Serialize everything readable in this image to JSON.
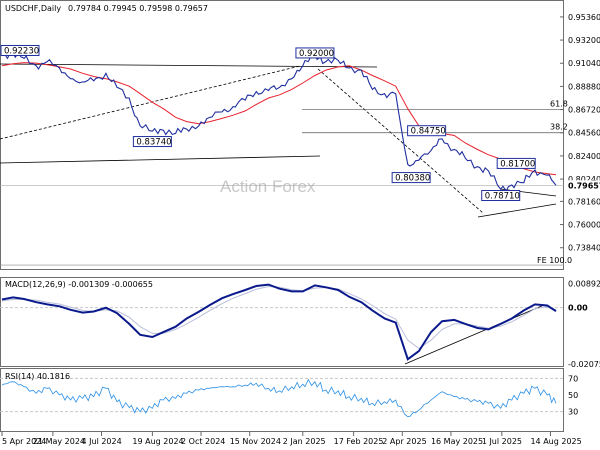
{
  "header": {
    "symbol": "USDCHF,Daily",
    "ohlc": "0.79784 0.79945 0.79598 0.79657"
  },
  "watermark": "Action Forex",
  "colors": {
    "price": "#1f2f9f",
    "sma": "#e8222d",
    "macd_line": "#0a1a8c",
    "macd_signal": "#b9bed9",
    "rsi": "#2b8fe6",
    "grid": "#c7c7c7",
    "trend": "#000000"
  },
  "chart_data": [
    {
      "type": "line",
      "title": "USDCHF,Daily",
      "x": [
        "2024-04-05",
        "2024-04-15",
        "2024-04-25",
        "2024-05-06",
        "2024-05-16",
        "2024-05-27",
        "2024-06-06",
        "2024-06-17",
        "2024-06-27",
        "2024-07-08",
        "2024-07-18",
        "2024-07-29",
        "2024-08-08",
        "2024-08-19",
        "2024-08-29",
        "2024-09-09",
        "2024-09-19",
        "2024-09-30",
        "2024-10-10",
        "2024-10-21",
        "2024-10-31",
        "2024-11-11",
        "2024-11-21",
        "2024-12-02",
        "2024-12-12",
        "2024-12-23",
        "2025-01-02",
        "2025-01-13",
        "2025-01-23",
        "2025-02-03",
        "2025-02-13",
        "2025-02-24",
        "2025-03-06",
        "2025-03-17",
        "2025-03-27",
        "2025-04-07",
        "2025-04-17",
        "2025-04-28",
        "2025-05-08",
        "2025-05-19",
        "2025-05-29",
        "2025-06-09",
        "2025-06-19",
        "2025-06-30",
        "2025-07-10",
        "2025-07-21",
        "2025-07-31",
        "2025-08-11",
        "2025-08-19"
      ],
      "x_ticks": [
        "5 Apr 2024",
        "21 May 2024",
        "4 Jul 2024",
        "19 Aug 2024",
        "2 Oct 2024",
        "15 Nov 2024",
        "2 Jan 2025",
        "17 Feb 2025",
        "2 Apr 2025",
        "16 May 2025",
        "1 Jul 2025",
        "14 Aug 2025"
      ],
      "series": [
        {
          "values": [
            0.918,
            0.9198,
            0.915,
            0.908,
            0.912,
            0.906,
            0.896,
            0.893,
            0.894,
            0.901,
            0.888,
            0.878,
            0.852,
            0.847,
            0.848,
            0.845,
            0.849,
            0.852,
            0.86,
            0.865,
            0.87,
            0.876,
            0.884,
            0.885,
            0.888,
            0.896,
            0.908,
            0.918,
            0.912,
            0.913,
            0.906,
            0.904,
            0.886,
            0.882,
            0.882,
            0.816,
            0.82,
            0.829,
            0.84,
            0.83,
            0.822,
            0.814,
            0.81,
            0.793,
            0.797,
            0.799,
            0.811,
            0.806,
            0.7966
          ]
        },
        {
          "values": [
            0.908,
            0.91,
            0.911,
            0.9105,
            0.909,
            0.907,
            0.905,
            0.901,
            0.898,
            0.896,
            0.893,
            0.889,
            0.882,
            0.874,
            0.868,
            0.86,
            0.856,
            0.854,
            0.856,
            0.859,
            0.862,
            0.866,
            0.872,
            0.878,
            0.881,
            0.886,
            0.892,
            0.899,
            0.904,
            0.907,
            0.908,
            0.904,
            0.899,
            0.894,
            0.889,
            0.868,
            0.852,
            0.846,
            0.845,
            0.843,
            0.836,
            0.83,
            0.825,
            0.821,
            0.816,
            0.812,
            0.809,
            0.8075,
            0.8065
          ]
        }
      ],
      "ylim": [
        0.7195,
        0.9675
      ],
      "y_ticks": [
        "0.95360",
        "0.93200",
        "0.91040",
        "0.88880",
        "0.86720",
        "0.84560",
        "0.82400",
        "0.80240",
        "0.78160",
        "0.76000",
        "0.73840"
      ],
      "y_ticks_values": [
        0.9536,
        0.932,
        0.9104,
        0.8888,
        0.8672,
        0.8456,
        0.824,
        0.8024,
        0.7816,
        0.76,
        0.7384
      ],
      "current_price_label": "0.79657",
      "current_price": 0.79657,
      "grid": false,
      "annotations": [
        {
          "label": "0.92230",
          "x": "2024-04-05",
          "y": 0.9223
        },
        {
          "label": "0.92000",
          "x": "2025-01-13",
          "y": 0.92
        },
        {
          "label": "0.83740",
          "x": "2024-08-19",
          "y": 0.8374
        },
        {
          "label": "0.84750",
          "x": "2025-04-24",
          "y": 0.8475
        },
        {
          "label": "0.81700",
          "x": "2025-07-14",
          "y": 0.817
        },
        {
          "label": "0.80380",
          "x": "2025-04-10",
          "y": 0.8038
        },
        {
          "label": "0.78710",
          "x": "2025-06-30",
          "y": 0.7871
        }
      ],
      "fib_levels": [
        {
          "label": "61.8",
          "y": 0.8672
        },
        {
          "label": "38.2",
          "y": 0.8456
        },
        {
          "label": "FE 100.0",
          "y": 0.7222
        }
      ]
    },
    {
      "type": "line",
      "title": "MACD(12,26,9) -0.001309 -0.000655",
      "x": [
        "2024-04-05",
        "2024-04-15",
        "2024-04-25",
        "2024-05-06",
        "2024-05-16",
        "2024-05-27",
        "2024-06-06",
        "2024-06-17",
        "2024-06-27",
        "2024-07-08",
        "2024-07-18",
        "2024-07-29",
        "2024-08-08",
        "2024-08-19",
        "2024-08-29",
        "2024-09-09",
        "2024-09-19",
        "2024-09-30",
        "2024-10-10",
        "2024-10-21",
        "2024-10-31",
        "2024-11-11",
        "2024-11-21",
        "2024-12-02",
        "2024-12-12",
        "2024-12-23",
        "2025-01-02",
        "2025-01-13",
        "2025-01-23",
        "2025-02-03",
        "2025-02-13",
        "2025-02-24",
        "2025-03-06",
        "2025-03-17",
        "2025-03-27",
        "2025-04-07",
        "2025-04-17",
        "2025-04-28",
        "2025-05-08",
        "2025-05-19",
        "2025-05-29",
        "2025-06-09",
        "2025-06-19",
        "2025-06-30",
        "2025-07-10",
        "2025-07-21",
        "2025-07-31",
        "2025-08-11",
        "2025-08-19"
      ],
      "series": [
        {
          "values": [
            0.003,
            0.0038,
            0.0032,
            0.002,
            0.0012,
            0.0005,
            -0.0008,
            -0.0018,
            -0.0014,
            0.0,
            -0.002,
            -0.006,
            -0.01,
            -0.0108,
            -0.009,
            -0.007,
            -0.004,
            -0.0015,
            0.001,
            0.0035,
            0.005,
            0.0065,
            0.008,
            0.0085,
            0.007,
            0.006,
            0.006,
            0.0082,
            0.0075,
            0.0065,
            0.004,
            0.002,
            -0.001,
            -0.004,
            -0.0055,
            -0.019,
            -0.016,
            -0.009,
            -0.005,
            -0.0045,
            -0.006,
            -0.0075,
            -0.008,
            -0.006,
            -0.004,
            -0.001,
            0.0012,
            0.0008,
            -0.0013
          ]
        },
        {
          "values": [
            0.0025,
            0.003,
            0.0031,
            0.0027,
            0.002,
            0.0013,
            0.0002,
            -0.001,
            -0.0014,
            -0.0008,
            -0.0012,
            -0.0035,
            -0.007,
            -0.0095,
            -0.0095,
            -0.008,
            -0.006,
            -0.0035,
            -0.001,
            0.0015,
            0.0035,
            0.0052,
            0.0068,
            0.0078,
            0.0075,
            0.0066,
            0.0062,
            0.0072,
            0.0074,
            0.0069,
            0.0052,
            0.0032,
            0.0008,
            -0.0022,
            -0.0042,
            -0.012,
            -0.015,
            -0.012,
            -0.008,
            -0.006,
            -0.006,
            -0.0068,
            -0.0076,
            -0.0068,
            -0.0052,
            -0.0028,
            -0.0004,
            0.0004,
            -0.0007
          ]
        }
      ],
      "ylim": [
        -0.0215,
        0.0102
      ],
      "y_ticks": [
        "0.008923",
        "0.00",
        "-0.020759"
      ],
      "y_ticks_values": [
        0.008923,
        0,
        -0.020759
      ],
      "current_value_label": "0.00"
    },
    {
      "type": "line",
      "title": "RSI(14) 40.1816",
      "x": [
        "2024-04-05",
        "2024-04-15",
        "2024-04-25",
        "2024-05-06",
        "2024-05-16",
        "2024-05-27",
        "2024-06-06",
        "2024-06-17",
        "2024-06-27",
        "2024-07-08",
        "2024-07-18",
        "2024-07-29",
        "2024-08-08",
        "2024-08-19",
        "2024-08-29",
        "2024-09-09",
        "2024-09-19",
        "2024-09-30",
        "2024-10-10",
        "2024-10-21",
        "2024-10-31",
        "2024-11-11",
        "2024-11-21",
        "2024-12-02",
        "2024-12-12",
        "2024-12-23",
        "2025-01-02",
        "2025-01-13",
        "2025-01-23",
        "2025-02-03",
        "2025-02-13",
        "2025-02-24",
        "2025-03-06",
        "2025-03-17",
        "2025-03-27",
        "2025-04-07",
        "2025-04-17",
        "2025-04-28",
        "2025-05-08",
        "2025-05-19",
        "2025-05-29",
        "2025-06-09",
        "2025-06-19",
        "2025-06-30",
        "2025-07-10",
        "2025-07-21",
        "2025-07-31",
        "2025-08-11",
        "2025-08-19"
      ],
      "series": [
        {
          "values": [
            62,
            66,
            60,
            52,
            58,
            50,
            44,
            46,
            48,
            58,
            42,
            35,
            30,
            34,
            44,
            46,
            52,
            56,
            58,
            60,
            60,
            62,
            64,
            58,
            55,
            60,
            63,
            66,
            56,
            55,
            48,
            46,
            40,
            42,
            44,
            24,
            32,
            44,
            54,
            48,
            45,
            42,
            40,
            34,
            44,
            52,
            58,
            50,
            40
          ]
        }
      ],
      "ylim": [
        8,
        80
      ],
      "y_ticks": [
        "70",
        "50",
        "30"
      ],
      "y_ticks_values": [
        70,
        50,
        30
      ]
    }
  ]
}
